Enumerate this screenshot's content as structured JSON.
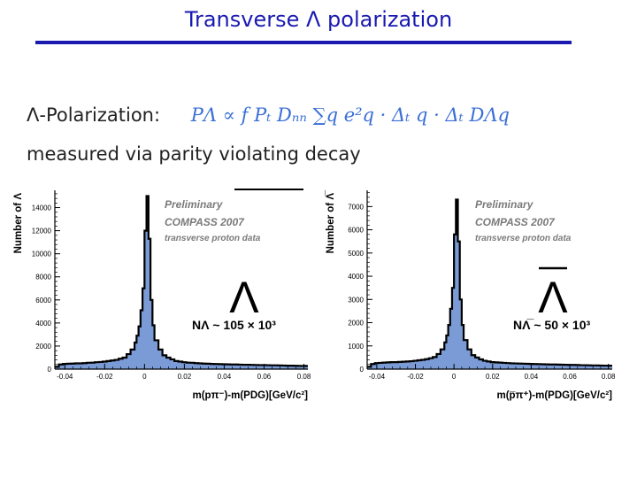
{
  "slide": {
    "title": "Transverse Λ polarization",
    "formula_label": "Λ-Polarization:",
    "formula": "PΛ ∝ f Pₜ Dₙₙ ∑q e²q · Δₜ q · Δₜ DΛq",
    "subline": "measured via parity violating decay"
  },
  "colors": {
    "title": "#1a1ab0",
    "fill": "#7b9bd6",
    "outline": "#000000",
    "formula": "#3a6fd6"
  },
  "chart_data": [
    {
      "type": "bar",
      "xlabel": "m(pπ⁻)-m(PDG)[GeV/c²]",
      "ylabel": "Number of Λ",
      "xlim": [
        -0.045,
        0.082
      ],
      "ylim": [
        0,
        15500
      ],
      "xticks": [
        -0.04,
        -0.02,
        0,
        0.02,
        0.04,
        0.06,
        0.08
      ],
      "xtick_labels": [
        "-0.04",
        "-0.02",
        "0",
        "0.02",
        "0.04",
        "0.06",
        "0.08"
      ],
      "yticks": [
        0,
        2000,
        4000,
        6000,
        8000,
        10000,
        12000,
        14000
      ],
      "ytick_labels": [
        "0",
        "2000",
        "4000",
        "6000",
        "8000",
        "10000",
        "12000",
        "14000"
      ],
      "annotations": [
        "Preliminary",
        "COMPASS 2007",
        "transverse proton data"
      ],
      "particle": "Λ",
      "bar_over_symbol": false,
      "count_label": "NΛ ~ 105 × 10³",
      "histogram": {
        "x": [
          -0.045,
          -0.043,
          -0.041,
          -0.039,
          -0.037,
          -0.035,
          -0.033,
          -0.031,
          -0.029,
          -0.027,
          -0.025,
          -0.023,
          -0.021,
          -0.019,
          -0.017,
          -0.015,
          -0.013,
          -0.011,
          -0.009,
          -0.007,
          -0.005,
          -0.004,
          -0.003,
          -0.002,
          -0.001,
          0.0,
          0.001,
          0.002,
          0.003,
          0.004,
          0.005,
          0.007,
          0.009,
          0.011,
          0.013,
          0.015,
          0.017,
          0.019,
          0.021,
          0.023,
          0.025,
          0.027,
          0.029,
          0.031,
          0.033,
          0.035,
          0.037,
          0.039,
          0.041,
          0.043,
          0.045,
          0.047,
          0.049,
          0.051,
          0.053,
          0.055,
          0.057,
          0.059,
          0.061,
          0.063,
          0.065,
          0.067,
          0.069,
          0.071,
          0.073,
          0.075,
          0.077,
          0.079,
          0.081
        ],
        "values": [
          200,
          400,
          450,
          470,
          480,
          500,
          500,
          520,
          550,
          560,
          600,
          620,
          650,
          700,
          750,
          800,
          900,
          1000,
          1300,
          1700,
          2300,
          2900,
          3700,
          5100,
          7000,
          12000,
          15000,
          11300,
          6000,
          3800,
          2500,
          1700,
          1200,
          1000,
          850,
          700,
          650,
          600,
          560,
          550,
          520,
          500,
          480,
          470,
          450,
          440,
          430,
          420,
          410,
          400,
          400,
          390,
          380,
          380,
          370,
          360,
          350,
          350,
          340,
          330,
          330,
          320,
          310,
          300,
          300,
          290,
          280,
          280,
          270
        ]
      }
    },
    {
      "type": "bar",
      "xlabel": "m(p̅π⁺)-m(PDG)[GeV/c²]",
      "ylabel": "Number of Λ̅",
      "xlim": [
        -0.045,
        0.082
      ],
      "ylim": [
        0,
        7700
      ],
      "xticks": [
        -0.04,
        -0.02,
        0,
        0.02,
        0.04,
        0.06,
        0.08
      ],
      "xtick_labels": [
        "-0.04",
        "-0.02",
        "0",
        "0.02",
        "0.04",
        "0.06",
        "0.08"
      ],
      "yticks": [
        0,
        1000,
        2000,
        3000,
        4000,
        5000,
        6000,
        7000
      ],
      "ytick_labels": [
        "0",
        "1000",
        "2000",
        "3000",
        "4000",
        "5000",
        "6000",
        "7000"
      ],
      "annotations": [
        "Preliminary",
        "COMPASS 2007",
        "transverse proton data"
      ],
      "particle": "Λ",
      "bar_over_symbol": true,
      "count_label": "NΛ̅ ~ 50 × 10³",
      "histogram": {
        "x": [
          -0.045,
          -0.043,
          -0.041,
          -0.039,
          -0.037,
          -0.035,
          -0.033,
          -0.031,
          -0.029,
          -0.027,
          -0.025,
          -0.023,
          -0.021,
          -0.019,
          -0.017,
          -0.015,
          -0.013,
          -0.011,
          -0.009,
          -0.007,
          -0.005,
          -0.004,
          -0.003,
          -0.002,
          -0.001,
          0.0,
          0.001,
          0.002,
          0.003,
          0.004,
          0.005,
          0.007,
          0.009,
          0.011,
          0.013,
          0.015,
          0.017,
          0.019,
          0.021,
          0.023,
          0.025,
          0.027,
          0.029,
          0.031,
          0.033,
          0.035,
          0.037,
          0.039,
          0.041,
          0.043,
          0.045,
          0.047,
          0.049,
          0.051,
          0.053,
          0.055,
          0.057,
          0.059,
          0.061,
          0.063,
          0.065,
          0.067,
          0.069,
          0.071,
          0.073,
          0.075,
          0.077,
          0.079,
          0.081
        ],
        "values": [
          100,
          220,
          260,
          270,
          280,
          290,
          300,
          300,
          310,
          320,
          330,
          340,
          360,
          380,
          400,
          430,
          470,
          520,
          650,
          850,
          1150,
          1450,
          1900,
          2600,
          3500,
          5800,
          7300,
          5500,
          3000,
          1900,
          1250,
          850,
          600,
          500,
          420,
          360,
          330,
          300,
          290,
          280,
          270,
          260,
          250,
          245,
          240,
          235,
          230,
          225,
          220,
          215,
          210,
          205,
          200,
          200,
          195,
          190,
          185,
          180,
          180,
          175,
          170,
          170,
          165,
          160,
          160,
          155,
          150,
          150,
          145
        ]
      }
    }
  ]
}
